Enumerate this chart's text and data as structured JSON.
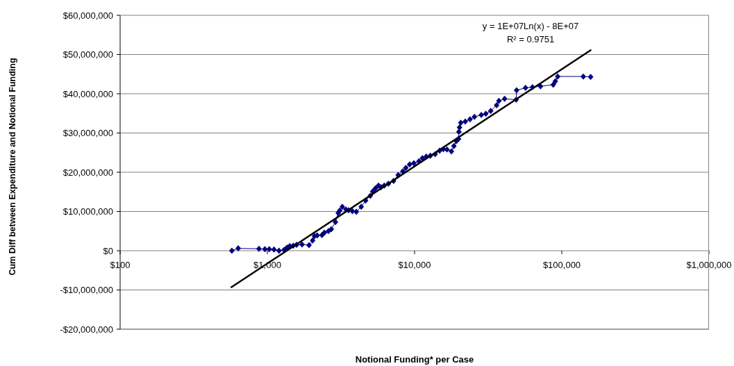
{
  "chart_data": {
    "type": "line",
    "xlabel": "Notional Funding* per Case",
    "ylabel": "Cum Diff between Expenditure and Notional Funding",
    "annotations": [
      "y = 1E+07Ln(x) - 8E+07",
      "R² = 0.9751"
    ],
    "log": "x",
    "xlim": [
      100,
      1000000
    ],
    "xticks": [
      {
        "value": 100,
        "label": "$100"
      },
      {
        "value": 1000,
        "label": "$1,000"
      },
      {
        "value": 10000,
        "label": "$10,000"
      },
      {
        "value": 100000,
        "label": "$100,000"
      },
      {
        "value": 1000000,
        "label": "$1,000,000"
      }
    ],
    "ylim": [
      -20000000,
      60000000
    ],
    "yticks": [
      {
        "value": -20000000,
        "label": "-$20,000,000"
      },
      {
        "value": -10000000,
        "label": "-$10,000,000"
      },
      {
        "value": 0,
        "label": "$0"
      },
      {
        "value": 10000000,
        "label": "$10,000,000"
      },
      {
        "value": 20000000,
        "label": "$20,000,000"
      },
      {
        "value": 30000000,
        "label": "$30,000,000"
      },
      {
        "value": 40000000,
        "label": "$40,000,000"
      },
      {
        "value": 50000000,
        "label": "$50,000,000"
      },
      {
        "value": 60000000,
        "label": "$60,000,000"
      }
    ],
    "grid": "y",
    "marker": "diamond",
    "series": [
      {
        "type": "line",
        "color": "#000080",
        "x": [
          574,
          634,
          877,
          962,
          1030,
          1110,
          1200,
          1300,
          1360,
          1420,
          1500,
          1580,
          1720,
          1920,
          2030,
          2090,
          2180,
          2350,
          2440,
          2600,
          2720,
          2900,
          3030,
          3100,
          3230,
          3420,
          3560,
          3780,
          4020,
          4340,
          4650,
          5000,
          5190,
          5420,
          5680,
          5920,
          6220,
          6640,
          7200,
          7740,
          8320,
          8720,
          9260,
          9890,
          10700,
          11300,
          12000,
          12800,
          13800,
          14800,
          15700,
          16600,
          17800,
          18500,
          19200,
          19900,
          20000,
          20200,
          20600,
          22100,
          23800,
          25500,
          28400,
          30500,
          32900,
          36100,
          37400,
          40900,
          49000,
          49300,
          56700,
          63200,
          71700,
          87500,
          90400,
          93800,
          140000,
          157000
        ],
        "values": [
          0,
          600000,
          500000,
          400000,
          400000,
          300000,
          0,
          200000,
          800000,
          1200000,
          1300000,
          1500000,
          1600000,
          1400000,
          2600000,
          3700000,
          3900000,
          4000000,
          4600000,
          5000000,
          5500000,
          7300000,
          9600000,
          10200000,
          11200000,
          10500000,
          10300000,
          10100000,
          9900000,
          11200000,
          12800000,
          14000000,
          15100000,
          15900000,
          16600000,
          16200000,
          16600000,
          17100000,
          17800000,
          19300000,
          20200000,
          21100000,
          22000000,
          22300000,
          22800000,
          23600000,
          24000000,
          24200000,
          24600000,
          25500000,
          25900000,
          25800000,
          25300000,
          26700000,
          27900000,
          28500000,
          30300000,
          31400000,
          32600000,
          32900000,
          33500000,
          34100000,
          34600000,
          34900000,
          35600000,
          37100000,
          38200000,
          38700000,
          38500000,
          40900000,
          41500000,
          41700000,
          41900000,
          42300000,
          43200000,
          44400000,
          44400000,
          44300000
        ]
      },
      {
        "type": "line",
        "color": "#000000",
        "marker": "none",
        "x": [
          570,
          157000
        ],
        "values": [
          -9300000,
          51100000
        ]
      }
    ]
  }
}
